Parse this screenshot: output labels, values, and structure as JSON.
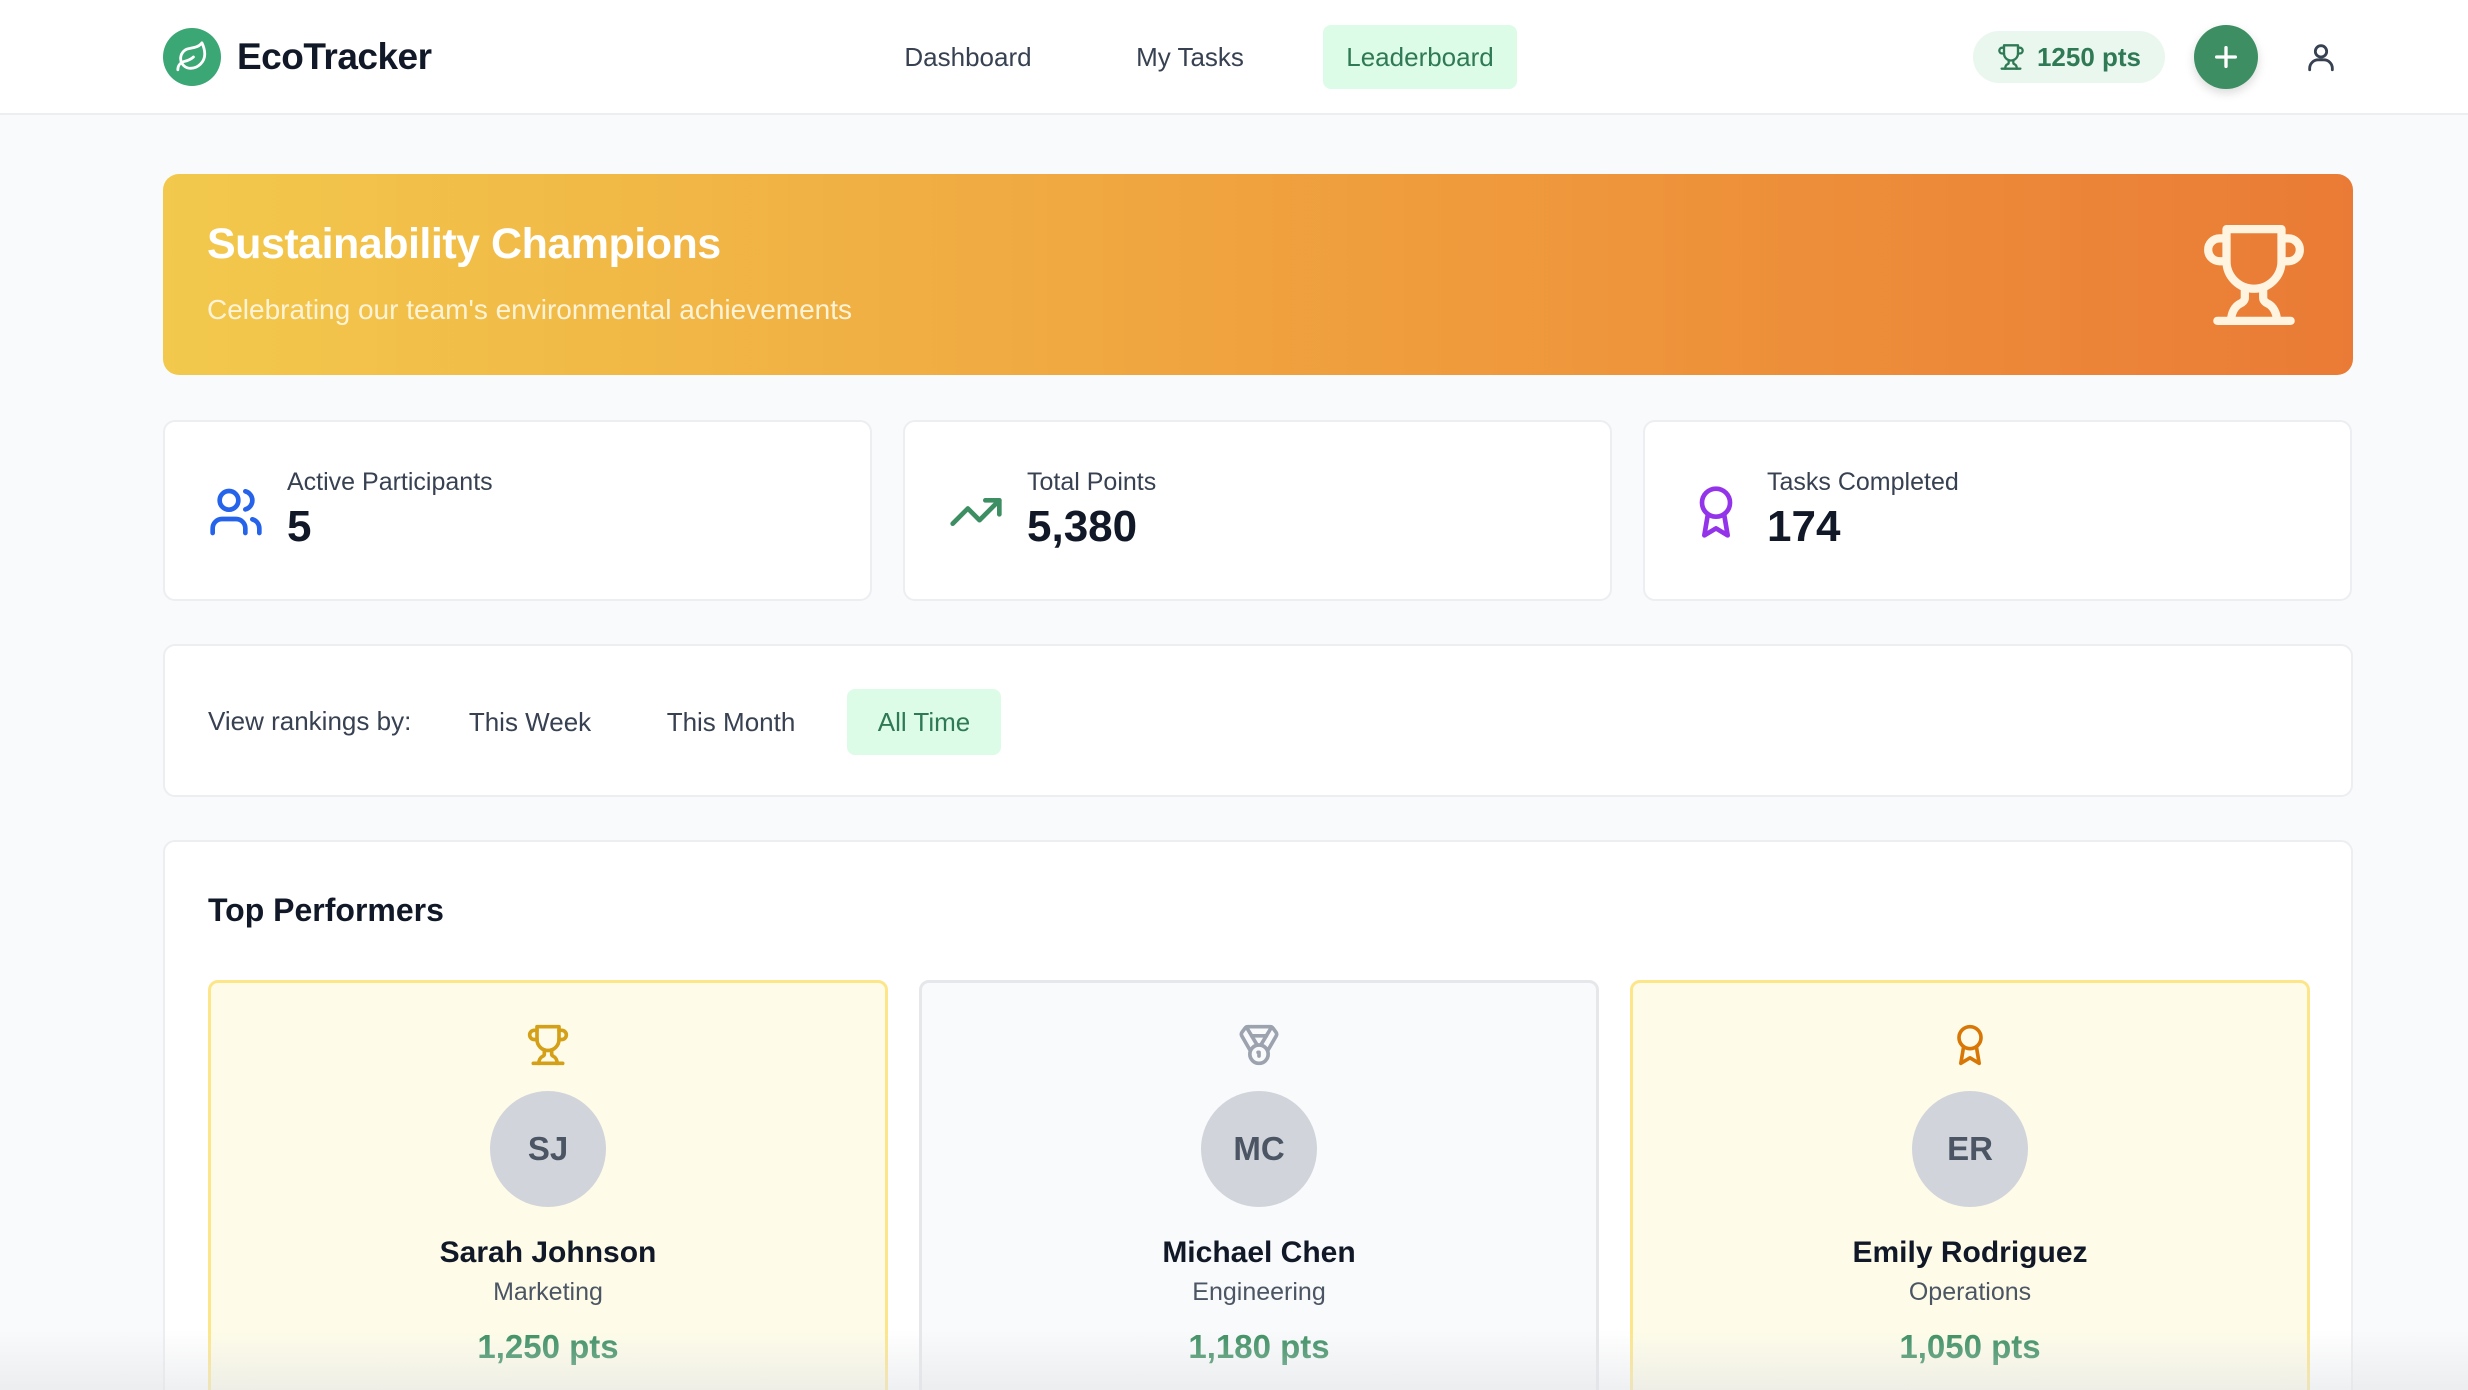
{
  "header": {
    "brand": "EcoTracker",
    "nav": [
      {
        "label": "Dashboard",
        "active": false
      },
      {
        "label": "My Tasks",
        "active": false
      },
      {
        "label": "Leaderboard",
        "active": true
      }
    ],
    "points": "1250 pts"
  },
  "banner": {
    "title": "Sustainability Champions",
    "subtitle": "Celebrating our team's environmental achievements"
  },
  "stats": [
    {
      "label": "Active Participants",
      "value": "5",
      "icon": "users-icon",
      "color": "#2563eb"
    },
    {
      "label": "Total Points",
      "value": "5,380",
      "icon": "trending-up-icon",
      "color": "#3d8f63"
    },
    {
      "label": "Tasks Completed",
      "value": "174",
      "icon": "award-icon",
      "color": "#9333ea"
    }
  ],
  "filter": {
    "label": "View rankings by:",
    "options": [
      {
        "label": "This Week",
        "active": false
      },
      {
        "label": "This Month",
        "active": false
      },
      {
        "label": "All Time",
        "active": true
      }
    ]
  },
  "top_performers": {
    "title": "Top Performers",
    "items": [
      {
        "initials": "SJ",
        "name": "Sarah Johnson",
        "department": "Marketing",
        "points": "1,250 pts",
        "icon": "trophy-icon",
        "color": "#d4a017"
      },
      {
        "initials": "MC",
        "name": "Michael Chen",
        "department": "Engineering",
        "points": "1,180 pts",
        "icon": "medal-icon",
        "color": "#9ca3af"
      },
      {
        "initials": "ER",
        "name": "Emily Rodriguez",
        "department": "Operations",
        "points": "1,050 pts",
        "icon": "award-icon",
        "color": "#d97706"
      }
    ]
  }
}
